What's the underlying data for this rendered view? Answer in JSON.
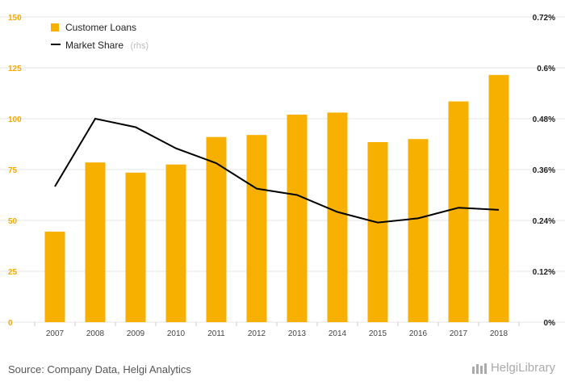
{
  "chart_data": {
    "type": "bar",
    "categories": [
      "2007",
      "2008",
      "2009",
      "2010",
      "2011",
      "2012",
      "2013",
      "2014",
      "2015",
      "2016",
      "2017",
      "2018"
    ],
    "series": [
      {
        "name": "Customer Loans",
        "type": "bar",
        "axis": "left",
        "color": "#f7b000",
        "values": [
          44.5,
          78.5,
          73.5,
          77.5,
          91,
          92,
          102,
          103,
          88.5,
          90,
          108.5,
          121.5
        ]
      },
      {
        "name": "Market Share",
        "name_suffix": "(rhs)",
        "type": "line",
        "axis": "right",
        "color": "#000000",
        "values": [
          0.32,
          0.48,
          0.46,
          0.41,
          0.375,
          0.315,
          0.3,
          0.26,
          0.235,
          0.245,
          0.27,
          0.265
        ]
      }
    ],
    "left_axis": {
      "min": 0,
      "max": 150,
      "ticks": [
        "0",
        "25",
        "50",
        "75",
        "100",
        "125",
        "150"
      ]
    },
    "right_axis": {
      "min": 0,
      "max": 0.72,
      "ticks": [
        "0%",
        "0.12%",
        "0.24%",
        "0.36%",
        "0.48%",
        "0.6%",
        "0.72%"
      ]
    },
    "grid": true,
    "legend_position": "top-left"
  },
  "footer": {
    "source": "Source: Company Data, Helgi Analytics",
    "logo_text": "HelgiLibrary",
    "logo_icon": "building-icon"
  }
}
